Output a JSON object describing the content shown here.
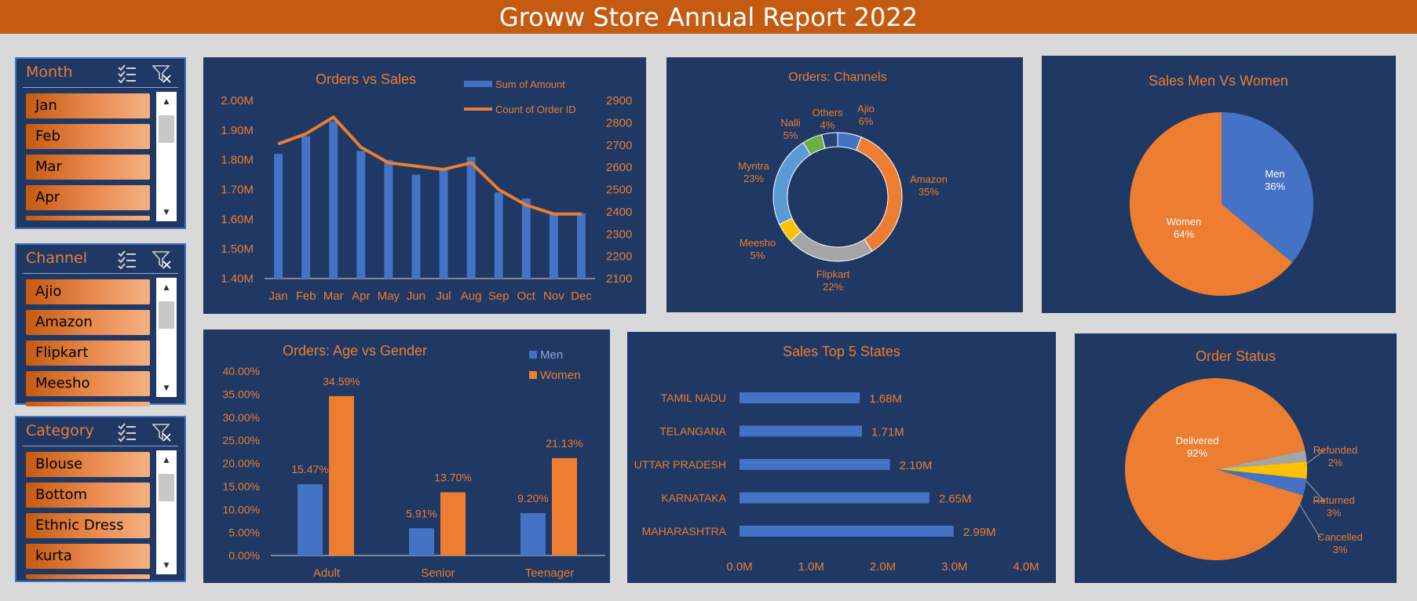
{
  "report_title": "Groww Store Annual Report 2022",
  "slicers": [
    {
      "title": "Month",
      "items": [
        "Jan",
        "Feb",
        "Mar",
        "Apr"
      ]
    },
    {
      "title": "Channel",
      "items": [
        "Ajio",
        "Amazon",
        "Flipkart",
        "Meesho"
      ]
    },
    {
      "title": "Category",
      "items": [
        "Blouse",
        "Bottom",
        "Ethnic Dress",
        "kurta"
      ]
    }
  ],
  "slicer_icons": [
    "multi-select-icon",
    "clear-filter-icon",
    "scroll-up-icon",
    "scroll-down-icon"
  ],
  "colors": {
    "background": "#d9d9d9",
    "banner": "#c55a11",
    "panel": "#1f3864",
    "blue": "#4472c4",
    "orange": "#ed7d31",
    "gray": "#a5a5a5",
    "yellow": "#ffc000",
    "green": "#70ad47",
    "lightblue": "#5b9bd5",
    "navy": "#264478"
  },
  "chart_data": [
    {
      "type": "bar",
      "title": "Orders vs Sales",
      "categories": [
        "Jan",
        "Feb",
        "Mar",
        "Apr",
        "May",
        "Jun",
        "Jul",
        "Aug",
        "Sep",
        "Oct",
        "Nov",
        "Dec"
      ],
      "series": [
        {
          "name": "Sum of Amount",
          "type": "bar",
          "axis": "left",
          "values": [
            1.82,
            1.88,
            1.93,
            1.83,
            1.8,
            1.75,
            1.77,
            1.81,
            1.69,
            1.67,
            1.62,
            1.62
          ]
        },
        {
          "name": "Count of Order ID",
          "type": "line",
          "axis": "right",
          "values": [
            2705,
            2750,
            2825,
            2690,
            2620,
            2605,
            2590,
            2620,
            2500,
            2430,
            2390,
            2390
          ]
        }
      ],
      "yticks_left": [
        "1.40M",
        "1.50M",
        "1.60M",
        "1.70M",
        "1.80M",
        "1.90M",
        "2.00M"
      ],
      "ylim_left": [
        1.4,
        2.0
      ],
      "yticks_right": [
        "2100",
        "2200",
        "2300",
        "2400",
        "2500",
        "2600",
        "2700",
        "2800",
        "2900"
      ],
      "ylim_right": [
        2100,
        2900
      ],
      "legend": "top-right"
    },
    {
      "type": "pie",
      "donut": true,
      "title": "Orders: Channels",
      "slices": [
        {
          "label": "Ajio",
          "value": 6,
          "text": "6%",
          "color": "#4472c4"
        },
        {
          "label": "Amazon",
          "value": 35,
          "text": "35%",
          "color": "#ed7d31"
        },
        {
          "label": "Flipkart",
          "value": 22,
          "text": "22%",
          "color": "#a5a5a5"
        },
        {
          "label": "Meesho",
          "value": 5,
          "text": "5%",
          "color": "#ffc000"
        },
        {
          "label": "Myntra",
          "value": 23,
          "text": "23%",
          "color": "#5b9bd5"
        },
        {
          "label": "Nalli",
          "value": 5,
          "text": "5%",
          "color": "#70ad47"
        },
        {
          "label": "Others",
          "value": 4,
          "text": "4%",
          "color": "#264478"
        }
      ]
    },
    {
      "type": "pie",
      "title": "Sales Men Vs Women",
      "slices": [
        {
          "label": "Men",
          "value": 36,
          "text": "36%",
          "color": "#4472c4"
        },
        {
          "label": "Women",
          "value": 64,
          "text": "64%",
          "color": "#ed7d31"
        }
      ]
    },
    {
      "type": "bar",
      "title": "Orders: Age vs Gender",
      "categories": [
        "Adult",
        "Senior",
        "Teenager"
      ],
      "series": [
        {
          "name": "Men",
          "values": [
            15.47,
            5.91,
            9.2
          ],
          "labels": [
            "15.47%",
            "5.91%",
            "9.20%"
          ]
        },
        {
          "name": "Women",
          "values": [
            34.59,
            13.7,
            21.13
          ],
          "labels": [
            "34.59%",
            "13.70%",
            "21.13%"
          ]
        }
      ],
      "yticks": [
        "0.00%",
        "5.00%",
        "10.00%",
        "15.00%",
        "20.00%",
        "25.00%",
        "30.00%",
        "35.00%",
        "40.00%"
      ],
      "ylim": [
        0,
        40
      ],
      "legend": "top-right"
    },
    {
      "type": "bar",
      "orientation": "horizontal",
      "title": "Sales Top 5 States",
      "categories": [
        "TAMIL NADU",
        "TELANGANA",
        "UTTAR PRADESH",
        "KARNATAKA",
        "MAHARASHTRA"
      ],
      "values": [
        1.68,
        1.71,
        2.1,
        2.65,
        2.99
      ],
      "labels": [
        "1.68M",
        "1.71M",
        "2.10M",
        "2.65M",
        "2.99M"
      ],
      "xticks": [
        "0.0M",
        "1.0M",
        "2.0M",
        "3.0M",
        "4.0M"
      ],
      "xlim": [
        0,
        4
      ]
    },
    {
      "type": "pie",
      "title": "Order Status",
      "slices": [
        {
          "label": "Delivered",
          "value": 92,
          "text": "92%",
          "color": "#ed7d31"
        },
        {
          "label": "Refunded",
          "value": 2,
          "text": "2%",
          "color": "#a5a5a5"
        },
        {
          "label": "Returned",
          "value": 3,
          "text": "3%",
          "color": "#ffc000"
        },
        {
          "label": "Cancelled",
          "value": 3,
          "text": "3%",
          "color": "#4472c4"
        }
      ]
    }
  ]
}
